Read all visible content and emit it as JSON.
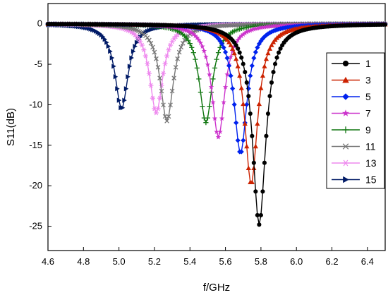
{
  "chart_data": {
    "type": "line",
    "xlabel": "f/GHz",
    "ylabel": "S11(dB)",
    "xlim": [
      4.6,
      6.5
    ],
    "ylim": [
      -28,
      2.5
    ],
    "xticks": [
      4.6,
      4.8,
      5.0,
      5.2,
      5.4,
      5.6,
      5.8,
      6.0,
      6.2,
      6.4
    ],
    "yticks": [
      0,
      -5,
      -10,
      -15,
      -20,
      -25
    ],
    "legend_position": "right",
    "series": [
      {
        "name": "1",
        "color": "#000000",
        "marker": "circle",
        "f0": 5.79,
        "min": -24.8,
        "width": 0.045
      },
      {
        "name": "3",
        "color": "#cc2200",
        "marker": "triangle",
        "f0": 5.745,
        "min": -19.8,
        "width": 0.045
      },
      {
        "name": "5",
        "color": "#0022ee",
        "marker": "diamond",
        "f0": 5.685,
        "min": -16.0,
        "width": 0.045
      },
      {
        "name": "7",
        "color": "#cc33cc",
        "marker": "star",
        "f0": 5.56,
        "min": -14.0,
        "width": 0.045
      },
      {
        "name": "9",
        "color": "#117711",
        "marker": "plus",
        "f0": 5.49,
        "min": -12.2,
        "width": 0.045
      },
      {
        "name": "11",
        "color": "#777777",
        "marker": "x",
        "f0": 5.27,
        "min": -12.0,
        "width": 0.045
      },
      {
        "name": "13",
        "color": "#ee88ee",
        "marker": "asterisk",
        "f0": 5.21,
        "min": -11.0,
        "width": 0.045
      },
      {
        "name": "15",
        "color": "#001a66",
        "marker": "triangle-right",
        "f0": 5.015,
        "min": -10.5,
        "width": 0.045
      }
    ]
  }
}
